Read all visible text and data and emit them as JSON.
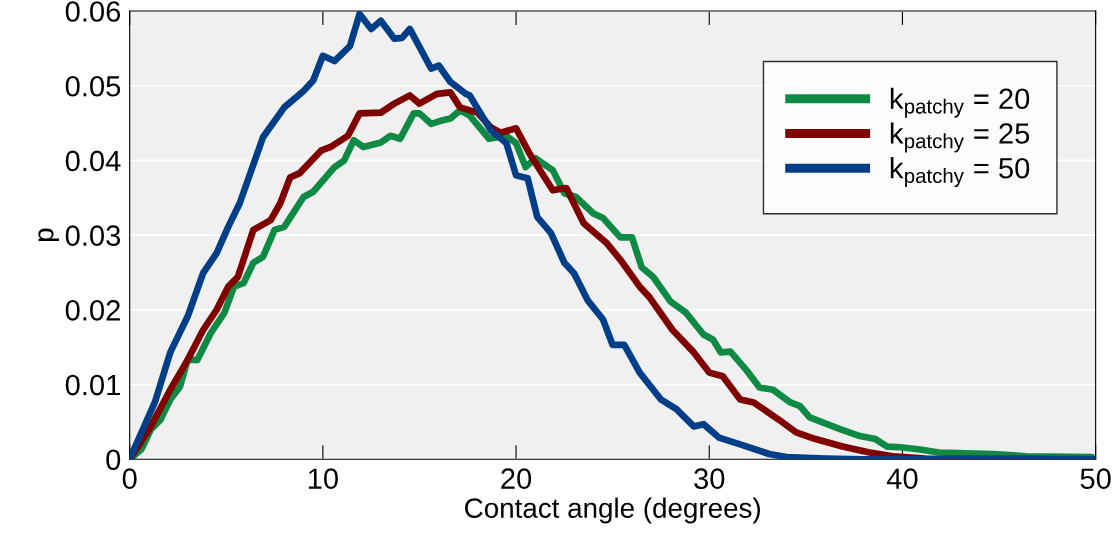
{
  "chart_data": {
    "type": "line",
    "xlabel": "Contact angle (degrees)",
    "ylabel": "p",
    "xlim": [
      0,
      50
    ],
    "ylim": [
      0,
      0.06
    ],
    "xticks": [
      0,
      10,
      20,
      30,
      40,
      50
    ],
    "yticks": [
      {
        "value": 0,
        "label": "0"
      },
      {
        "value": 0.01,
        "label": "0.01"
      },
      {
        "value": 0.02,
        "label": "0.02"
      },
      {
        "value": 0.03,
        "label": "0.03"
      },
      {
        "value": 0.04,
        "label": "0.04"
      },
      {
        "value": 0.05,
        "label": "0.05"
      },
      {
        "value": 0.06,
        "label": "0.06"
      }
    ],
    "grid": "y",
    "legend": "top right",
    "marker": "none",
    "line_style": "solid",
    "series": [
      {
        "name": "k$_{patchy}$ = 20",
        "color": "#0f8a45",
        "x": [
          0,
          0.6,
          1.1,
          1.6,
          2.1,
          2.6,
          3.0,
          3.5,
          4.2,
          4.9,
          5.4,
          5.9,
          6.4,
          6.9,
          7.5,
          8.0,
          9.0,
          9.5,
          10.6,
          11.1,
          11.6,
          12.1,
          13.0,
          13.5,
          14.0,
          14.7,
          15.0,
          15.6,
          16.1,
          16.6,
          17.1,
          17.6,
          18.6,
          19.5,
          20.0,
          20.5,
          21.0,
          21.9,
          22.5,
          23.1,
          24.0,
          24.5,
          25.4,
          26.0,
          26.5,
          27.1,
          28.0,
          28.8,
          29.7,
          30.2,
          30.6,
          31.1,
          31.9,
          32.6,
          33.3,
          34.2,
          34.7,
          35.2,
          36.1,
          36.8,
          37.8,
          38.6,
          39.2,
          39.9,
          40.9,
          41.9,
          44.7,
          46.4,
          49.8
        ],
        "values": [
          0,
          0.0013,
          0.004,
          0.0053,
          0.008,
          0.0097,
          0.0133,
          0.0133,
          0.0169,
          0.0196,
          0.0231,
          0.0236,
          0.0263,
          0.0271,
          0.0307,
          0.0311,
          0.0351,
          0.0358,
          0.0391,
          0.04,
          0.0427,
          0.0418,
          0.0424,
          0.0433,
          0.0429,
          0.0463,
          0.0463,
          0.0449,
          0.0453,
          0.0456,
          0.0467,
          0.046,
          0.0429,
          0.0433,
          0.0423,
          0.0391,
          0.0403,
          0.0387,
          0.0356,
          0.0351,
          0.0329,
          0.0323,
          0.0297,
          0.0297,
          0.0257,
          0.0244,
          0.0211,
          0.0196,
          0.0167,
          0.016,
          0.0143,
          0.0144,
          0.012,
          0.0096,
          0.0093,
          0.0076,
          0.0071,
          0.0056,
          0.0047,
          0.004,
          0.0031,
          0.0027,
          0.0017,
          0.0016,
          0.0013,
          0.0009,
          0.0007,
          0.0004,
          0.0003
        ]
      },
      {
        "name": "k$_{patchy}$ = 25",
        "color": "#800000",
        "x": [
          0,
          1.1,
          2.1,
          3.0,
          3.8,
          4.5,
          5.1,
          5.6,
          6.4,
          7.3,
          7.8,
          8.3,
          8.8,
          9.9,
          10.4,
          11.3,
          11.9,
          13.0,
          13.7,
          14.5,
          15.0,
          15.9,
          16.6,
          17.1,
          18.0,
          18.7,
          19.2,
          20.0,
          20.7,
          21.9,
          22.6,
          23.5,
          24.7,
          25.4,
          26.4,
          26.9,
          28.1,
          29.2,
          30.0,
          30.7,
          31.6,
          32.3,
          33.6,
          34.5,
          35.5,
          36.9,
          38.3,
          39.5,
          41.2,
          50
        ],
        "values": [
          0,
          0.0044,
          0.0093,
          0.0133,
          0.0173,
          0.02,
          0.0231,
          0.0244,
          0.0307,
          0.032,
          0.0343,
          0.0377,
          0.0383,
          0.0413,
          0.0418,
          0.0433,
          0.0463,
          0.0464,
          0.0476,
          0.0487,
          0.0476,
          0.0489,
          0.0491,
          0.0471,
          0.0464,
          0.0444,
          0.0437,
          0.0443,
          0.0409,
          0.036,
          0.0363,
          0.0316,
          0.0289,
          0.0267,
          0.0231,
          0.0217,
          0.0173,
          0.0143,
          0.0116,
          0.0111,
          0.008,
          0.0076,
          0.0053,
          0.0036,
          0.0027,
          0.0017,
          0.0009,
          0.0004,
          0.0001,
          0
        ]
      },
      {
        "name": "k$_{patchy}$ = 50",
        "color": "#003f87",
        "x": [
          0,
          1.3,
          2.1,
          3.0,
          3.8,
          4.5,
          5.1,
          5.7,
          6.9,
          8.0,
          9.0,
          9.5,
          10.0,
          10.6,
          11.4,
          11.9,
          12.5,
          13.0,
          13.7,
          14.1,
          14.5,
          15.6,
          16.0,
          16.6,
          17.4,
          17.6,
          18.7,
          19.5,
          20.0,
          20.6,
          21.1,
          21.8,
          22.5,
          23.0,
          23.7,
          24.5,
          25.0,
          25.6,
          26.4,
          27.5,
          28.3,
          29.2,
          29.7,
          30.5,
          31.6,
          33.1,
          34.0,
          36.0,
          38.0,
          50
        ],
        "values": [
          0,
          0.0076,
          0.0143,
          0.0191,
          0.0249,
          0.0276,
          0.0311,
          0.0343,
          0.0431,
          0.0471,
          0.0493,
          0.0507,
          0.054,
          0.0533,
          0.0553,
          0.0596,
          0.0576,
          0.0587,
          0.0563,
          0.0564,
          0.0576,
          0.0523,
          0.0527,
          0.0505,
          0.0489,
          0.0487,
          0.044,
          0.0423,
          0.038,
          0.0376,
          0.0324,
          0.0303,
          0.0263,
          0.0249,
          0.0213,
          0.0187,
          0.0153,
          0.0153,
          0.0116,
          0.008,
          0.0067,
          0.0044,
          0.0047,
          0.0029,
          0.002,
          0.0007,
          0.0003,
          0.0001,
          0,
          0
        ]
      }
    ]
  }
}
